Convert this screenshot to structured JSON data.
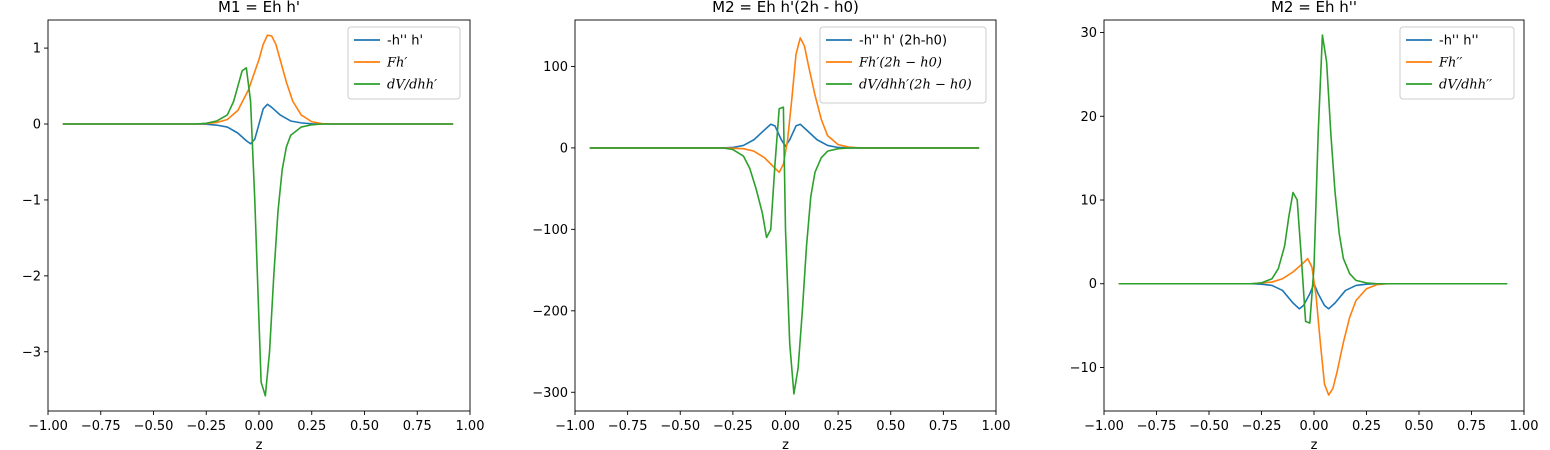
{
  "chart_data": [
    {
      "type": "line",
      "title": "M1 = Eh h'",
      "xlabel": "z",
      "ylabel": "",
      "xlim": [
        -1.0,
        1.0
      ],
      "ylim": [
        -3.78,
        1.37
      ],
      "xticks": [
        -1.0,
        -0.75,
        -0.5,
        -0.25,
        0.0,
        0.25,
        0.5,
        0.75,
        1.0
      ],
      "xtick_labels": [
        "−1.00",
        "−0.75",
        "−0.50",
        "−0.25",
        "0.00",
        "0.25",
        "0.50",
        "0.75",
        "1.00"
      ],
      "yticks": [
        -3,
        -2,
        -1,
        0,
        1
      ],
      "ytick_labels": [
        "−3",
        "−2",
        "−1",
        "0",
        "1"
      ],
      "legend_position": "top-right",
      "series": [
        {
          "name": "-h'' h'",
          "italic": false,
          "color": "#1f77b4",
          "points": [
            [
              -0.93,
              0
            ],
            [
              -0.5,
              0
            ],
            [
              -0.3,
              0
            ],
            [
              -0.25,
              -0.003
            ],
            [
              -0.2,
              -0.015
            ],
            [
              -0.15,
              -0.04
            ],
            [
              -0.1,
              -0.12
            ],
            [
              -0.06,
              -0.22
            ],
            [
              -0.04,
              -0.26
            ],
            [
              -0.02,
              -0.2
            ],
            [
              0.0,
              0.0
            ],
            [
              0.02,
              0.2
            ],
            [
              0.04,
              0.26
            ],
            [
              0.06,
              0.22
            ],
            [
              0.1,
              0.12
            ],
            [
              0.15,
              0.04
            ],
            [
              0.2,
              0.015
            ],
            [
              0.25,
              0.003
            ],
            [
              0.3,
              0
            ],
            [
              0.5,
              0
            ],
            [
              0.92,
              0
            ]
          ]
        },
        {
          "name": "Fh′",
          "italic": true,
          "color": "#ff7f0e",
          "points": [
            [
              -0.93,
              0
            ],
            [
              -0.5,
              0
            ],
            [
              -0.3,
              0
            ],
            [
              -0.25,
              0.005
            ],
            [
              -0.2,
              0.02
            ],
            [
              -0.15,
              0.06
            ],
            [
              -0.1,
              0.18
            ],
            [
              -0.05,
              0.45
            ],
            [
              0.0,
              0.85
            ],
            [
              0.02,
              1.05
            ],
            [
              0.04,
              1.17
            ],
            [
              0.06,
              1.16
            ],
            [
              0.08,
              1.05
            ],
            [
              0.1,
              0.85
            ],
            [
              0.13,
              0.55
            ],
            [
              0.16,
              0.3
            ],
            [
              0.2,
              0.12
            ],
            [
              0.25,
              0.03
            ],
            [
              0.3,
              0.005
            ],
            [
              0.35,
              0
            ],
            [
              0.5,
              0
            ],
            [
              0.92,
              0
            ]
          ]
        },
        {
          "name": "dV/dhh′",
          "italic": true,
          "color": "#2ca02c",
          "points": [
            [
              -0.93,
              0
            ],
            [
              -0.5,
              0
            ],
            [
              -0.3,
              0
            ],
            [
              -0.25,
              0.01
            ],
            [
              -0.2,
              0.04
            ],
            [
              -0.15,
              0.12
            ],
            [
              -0.12,
              0.3
            ],
            [
              -0.1,
              0.5
            ],
            [
              -0.08,
              0.7
            ],
            [
              -0.06,
              0.74
            ],
            [
              -0.04,
              0.3
            ],
            [
              -0.02,
              -1.0
            ],
            [
              0.0,
              -2.6
            ],
            [
              0.01,
              -3.4
            ],
            [
              0.03,
              -3.58
            ],
            [
              0.05,
              -3.0
            ],
            [
              0.07,
              -2.0
            ],
            [
              0.09,
              -1.15
            ],
            [
              0.11,
              -0.6
            ],
            [
              0.13,
              -0.3
            ],
            [
              0.15,
              -0.15
            ],
            [
              0.2,
              -0.04
            ],
            [
              0.25,
              -0.01
            ],
            [
              0.3,
              0
            ],
            [
              0.5,
              0
            ],
            [
              0.92,
              0
            ]
          ]
        }
      ]
    },
    {
      "type": "line",
      "title": "M2 = Eh h'(2h - h0)",
      "xlabel": "z",
      "ylabel": "",
      "xlim": [
        -1.0,
        1.0
      ],
      "ylim": [
        -323,
        157
      ],
      "xticks": [
        -1.0,
        -0.75,
        -0.5,
        -0.25,
        0.0,
        0.25,
        0.5,
        0.75,
        1.0
      ],
      "xtick_labels": [
        "−1.00",
        "−0.75",
        "−0.50",
        "−0.25",
        "0.00",
        "0.25",
        "0.50",
        "0.75",
        "1.00"
      ],
      "yticks": [
        -300,
        -200,
        -100,
        0,
        100
      ],
      "ytick_labels": [
        "−300",
        "−200",
        "−100",
        "0",
        "100"
      ],
      "legend_position": "top-right",
      "series": [
        {
          "name": "-h'' h' (2h-h0)",
          "italic": false,
          "color": "#1f77b4",
          "points": [
            [
              -0.93,
              0
            ],
            [
              -0.5,
              0
            ],
            [
              -0.3,
              0
            ],
            [
              -0.25,
              0.5
            ],
            [
              -0.2,
              3
            ],
            [
              -0.15,
              10
            ],
            [
              -0.1,
              22
            ],
            [
              -0.07,
              29
            ],
            [
              -0.05,
              27
            ],
            [
              -0.02,
              10
            ],
            [
              0.0,
              2
            ],
            [
              0.02,
              10
            ],
            [
              0.05,
              27
            ],
            [
              0.07,
              29
            ],
            [
              0.1,
              22
            ],
            [
              0.15,
              10
            ],
            [
              0.2,
              3
            ],
            [
              0.25,
              0.5
            ],
            [
              0.3,
              0
            ],
            [
              0.5,
              0
            ],
            [
              0.92,
              0
            ]
          ]
        },
        {
          "name": "Fh′(2h − h0)",
          "italic": true,
          "color": "#ff7f0e",
          "points": [
            [
              -0.93,
              0
            ],
            [
              -0.5,
              0
            ],
            [
              -0.3,
              0
            ],
            [
              -0.2,
              -1
            ],
            [
              -0.15,
              -4
            ],
            [
              -0.1,
              -12
            ],
            [
              -0.05,
              -25
            ],
            [
              -0.03,
              -30
            ],
            [
              -0.01,
              -20
            ],
            [
              0.01,
              10
            ],
            [
              0.03,
              60
            ],
            [
              0.05,
              115
            ],
            [
              0.07,
              135
            ],
            [
              0.09,
              125
            ],
            [
              0.11,
              100
            ],
            [
              0.14,
              65
            ],
            [
              0.17,
              35
            ],
            [
              0.2,
              15
            ],
            [
              0.25,
              4
            ],
            [
              0.3,
              1
            ],
            [
              0.35,
              0
            ],
            [
              0.5,
              0
            ],
            [
              0.92,
              0
            ]
          ]
        },
        {
          "name": "dV/dhh′(2h − h0)",
          "italic": true,
          "color": "#2ca02c",
          "points": [
            [
              -0.93,
              0
            ],
            [
              -0.5,
              0
            ],
            [
              -0.3,
              0
            ],
            [
              -0.25,
              -2
            ],
            [
              -0.2,
              -10
            ],
            [
              -0.17,
              -25
            ],
            [
              -0.14,
              -50
            ],
            [
              -0.11,
              -80
            ],
            [
              -0.09,
              -110
            ],
            [
              -0.07,
              -100
            ],
            [
              -0.05,
              -20
            ],
            [
              -0.03,
              48
            ],
            [
              -0.01,
              50
            ],
            [
              0.0,
              -100
            ],
            [
              0.02,
              -240
            ],
            [
              0.04,
              -302
            ],
            [
              0.06,
              -270
            ],
            [
              0.08,
              -200
            ],
            [
              0.1,
              -120
            ],
            [
              0.12,
              -60
            ],
            [
              0.14,
              -30
            ],
            [
              0.17,
              -12
            ],
            [
              0.2,
              -4
            ],
            [
              0.25,
              -1
            ],
            [
              0.3,
              0
            ],
            [
              0.5,
              0
            ],
            [
              0.92,
              0
            ]
          ]
        }
      ]
    },
    {
      "type": "line",
      "title": "M2 = Eh h''",
      "xlabel": "z",
      "ylabel": "",
      "xlim": [
        -1.0,
        1.0
      ],
      "ylim": [
        -15.2,
        31.5
      ],
      "xticks": [
        -1.0,
        -0.75,
        -0.5,
        -0.25,
        0.0,
        0.25,
        0.5,
        0.75,
        1.0
      ],
      "xtick_labels": [
        "−1.00",
        "−0.75",
        "−0.50",
        "−0.25",
        "0.00",
        "0.25",
        "0.50",
        "0.75",
        "1.00"
      ],
      "yticks": [
        -10,
        0,
        10,
        20,
        30
      ],
      "ytick_labels": [
        "−10",
        "0",
        "10",
        "20",
        "30"
      ],
      "legend_position": "top-right",
      "series": [
        {
          "name": "-h'' h''",
          "italic": false,
          "color": "#1f77b4",
          "points": [
            [
              -0.93,
              0
            ],
            [
              -0.5,
              0
            ],
            [
              -0.3,
              0
            ],
            [
              -0.25,
              -0.05
            ],
            [
              -0.2,
              -0.2
            ],
            [
              -0.15,
              -0.8
            ],
            [
              -0.1,
              -2.3
            ],
            [
              -0.07,
              -3.0
            ],
            [
              -0.05,
              -2.6
            ],
            [
              -0.02,
              -1.2
            ],
            [
              0.0,
              0.0
            ],
            [
              0.02,
              -1.2
            ],
            [
              0.05,
              -2.6
            ],
            [
              0.07,
              -3.0
            ],
            [
              0.1,
              -2.3
            ],
            [
              0.15,
              -0.8
            ],
            [
              0.2,
              -0.2
            ],
            [
              0.25,
              -0.05
            ],
            [
              0.3,
              0
            ],
            [
              0.5,
              0
            ],
            [
              0.92,
              0
            ]
          ]
        },
        {
          "name": "Fh′′",
          "italic": true,
          "color": "#ff7f0e",
          "points": [
            [
              -0.93,
              0
            ],
            [
              -0.5,
              0
            ],
            [
              -0.3,
              0
            ],
            [
              -0.2,
              0.2
            ],
            [
              -0.15,
              0.6
            ],
            [
              -0.1,
              1.4
            ],
            [
              -0.05,
              2.5
            ],
            [
              -0.03,
              3.0
            ],
            [
              -0.01,
              2.0
            ],
            [
              0.01,
              -1.5
            ],
            [
              0.03,
              -7.0
            ],
            [
              0.05,
              -12.0
            ],
            [
              0.07,
              -13.3
            ],
            [
              0.09,
              -12.5
            ],
            [
              0.11,
              -10.5
            ],
            [
              0.14,
              -7.0
            ],
            [
              0.17,
              -4.0
            ],
            [
              0.2,
              -2.0
            ],
            [
              0.25,
              -0.6
            ],
            [
              0.3,
              -0.1
            ],
            [
              0.35,
              0
            ],
            [
              0.5,
              0
            ],
            [
              0.92,
              0
            ]
          ]
        },
        {
          "name": "dV/dhh′′",
          "italic": true,
          "color": "#2ca02c",
          "points": [
            [
              -0.93,
              0
            ],
            [
              -0.5,
              0
            ],
            [
              -0.3,
              0
            ],
            [
              -0.25,
              0.1
            ],
            [
              -0.2,
              0.6
            ],
            [
              -0.17,
              1.8
            ],
            [
              -0.14,
              4.5
            ],
            [
              -0.12,
              8.0
            ],
            [
              -0.1,
              10.9
            ],
            [
              -0.08,
              10.0
            ],
            [
              -0.06,
              3.0
            ],
            [
              -0.04,
              -4.5
            ],
            [
              -0.02,
              -4.7
            ],
            [
              0.0,
              2.0
            ],
            [
              0.02,
              18.0
            ],
            [
              0.04,
              29.7
            ],
            [
              0.06,
              26.5
            ],
            [
              0.08,
              18.0
            ],
            [
              0.1,
              11.0
            ],
            [
              0.12,
              6.0
            ],
            [
              0.14,
              3.0
            ],
            [
              0.17,
              1.2
            ],
            [
              0.2,
              0.4
            ],
            [
              0.25,
              0.1
            ],
            [
              0.3,
              0
            ],
            [
              0.5,
              0
            ],
            [
              0.92,
              0
            ]
          ]
        }
      ]
    }
  ]
}
